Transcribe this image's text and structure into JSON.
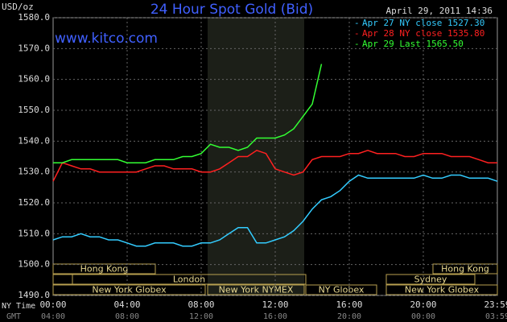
{
  "chart_data": {
    "type": "line",
    "title": "24 Hour Spot Gold (Bid)",
    "y_label": "USD/oz",
    "timestamp": "April 29, 2011 14:36",
    "watermark": "www.kitco.com",
    "x_label": "NY Time",
    "x2_label": "GMT",
    "x": [
      0,
      0.5,
      1,
      1.5,
      2,
      2.5,
      3,
      3.5,
      4,
      4.5,
      5,
      5.5,
      6,
      6.5,
      7,
      7.5,
      8,
      8.5,
      9,
      9.5,
      10,
      10.5,
      11,
      11.5,
      12,
      12.5,
      13,
      13.5,
      14,
      14.5,
      15,
      15.5,
      16,
      16.5,
      17,
      17.5,
      18,
      18.5,
      19,
      19.5,
      20,
      20.5,
      21,
      21.5,
      22,
      22.5,
      23,
      23.5,
      24
    ],
    "series": [
      {
        "name": "Apr 27 NY close 1527.30",
        "color": "#33ccff",
        "values": [
          1508,
          1509,
          1509,
          1510,
          1509,
          1509,
          1508,
          1508,
          1507,
          1506,
          1506,
          1507,
          1507,
          1507,
          1506,
          1506,
          1507,
          1507,
          1508,
          1510,
          1512,
          1512,
          1507,
          1507,
          1508,
          1509,
          1511,
          1514,
          1518,
          1521,
          1522,
          1524,
          1527,
          1529,
          1528,
          1528,
          1528,
          1528,
          1528,
          1528,
          1529,
          1528,
          1528,
          1529,
          1529,
          1528,
          1528,
          1528,
          1527
        ]
      },
      {
        "name": "Apr 28 NY close 1535.80",
        "color": "#ff2020",
        "values": [
          1527,
          1533,
          1532,
          1531,
          1531,
          1530,
          1530,
          1530,
          1530,
          1530,
          1531,
          1532,
          1532,
          1531,
          1531,
          1531,
          1530,
          1530,
          1531,
          1533,
          1535,
          1535,
          1537,
          1536,
          1531,
          1530,
          1529,
          1530,
          1534,
          1535,
          1535,
          1535,
          1536,
          1536,
          1537,
          1536,
          1536,
          1536,
          1535,
          1535,
          1536,
          1536,
          1536,
          1535,
          1535,
          1535,
          1534,
          1533,
          1533
        ]
      },
      {
        "name": "Apr 29 Last 1565.50",
        "color": "#33ff33",
        "values": [
          1533,
          1533,
          1534,
          1534,
          1534,
          1534,
          1534,
          1534,
          1533,
          1533,
          1533,
          1534,
          1534,
          1534,
          1535,
          1535,
          1536,
          1539,
          1538,
          1538,
          1537,
          1538,
          1541,
          1541,
          1541,
          1542,
          1544,
          1548,
          1552,
          1565,
          null,
          null,
          null,
          null,
          null,
          null,
          null,
          null,
          null,
          null,
          null,
          null,
          null,
          null,
          null,
          null,
          null,
          null,
          null
        ]
      }
    ],
    "xlim": [
      0,
      24
    ],
    "xticks": [
      {
        "value": 0,
        "label": "00:00"
      },
      {
        "value": 4,
        "label": "04:00"
      },
      {
        "value": 8,
        "label": "08:00"
      },
      {
        "value": 12,
        "label": "12:00"
      },
      {
        "value": 16,
        "label": "16:00"
      },
      {
        "value": 20,
        "label": "20:00"
      },
      {
        "value": 24,
        "label": "23:59"
      }
    ],
    "gmt_labels": [
      "04:00",
      "08:00",
      "12:00",
      "16:00",
      "20:00",
      "00:00",
      "03:59"
    ],
    "ylim": [
      1490,
      1580
    ],
    "yticks": [
      {
        "value": 1490,
        "label": "1490.0"
      },
      {
        "value": 1500,
        "label": "1500.0"
      },
      {
        "value": 1510,
        "label": "1510.0"
      },
      {
        "value": 1520,
        "label": "1520.0"
      },
      {
        "value": 1530,
        "label": "1530.0"
      },
      {
        "value": 1540,
        "label": "1540.0"
      },
      {
        "value": 1550,
        "label": "1550.0"
      },
      {
        "value": 1560,
        "label": "1560.0"
      },
      {
        "value": 1570,
        "label": "1570.0"
      },
      {
        "value": 1580,
        "label": "1580.0"
      }
    ],
    "grid": true,
    "sessions": [
      "Hong Kong",
      "Hong Kong",
      "London",
      "Sydney",
      "New York Globex",
      "New York NYMEX",
      "NY Globex",
      "New York Globex"
    ]
  }
}
